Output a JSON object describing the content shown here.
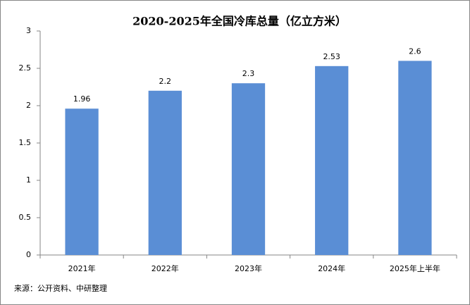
{
  "chart_data": {
    "type": "bar",
    "title": "2020-2025年全国冷库总量（亿立方米）",
    "categories": [
      "2021年",
      "2022年",
      "2023年",
      "2024年",
      "2025年上半年"
    ],
    "values": [
      1.96,
      2.2,
      2.3,
      2.53,
      2.6
    ],
    "color": "#5a8ed5",
    "ylim": [
      0,
      3
    ],
    "yticks": [
      0,
      0.5,
      1,
      1.5,
      2,
      2.5,
      3
    ],
    "grid": false,
    "source": "来源：公开资料、中研整理"
  }
}
